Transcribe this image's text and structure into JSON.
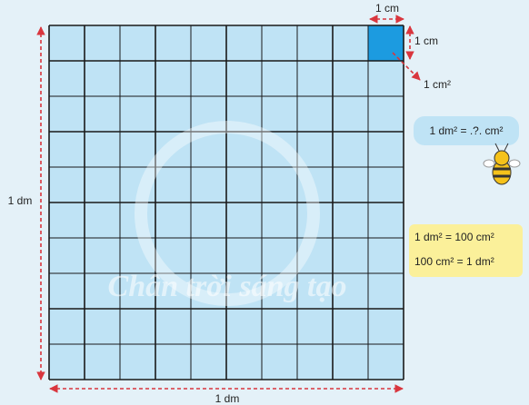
{
  "labels": {
    "side_left": "1 dm",
    "side_bottom": "1 dm",
    "cell_width": "1 cm",
    "cell_height": "1 cm",
    "cell_area": "1 cm²"
  },
  "question": "1 dm² = .?. cm²",
  "facts": [
    "1 dm² = 100 cm²",
    "100 cm² = 1 dm²"
  ],
  "watermark": "Chân trời sáng tạo"
}
